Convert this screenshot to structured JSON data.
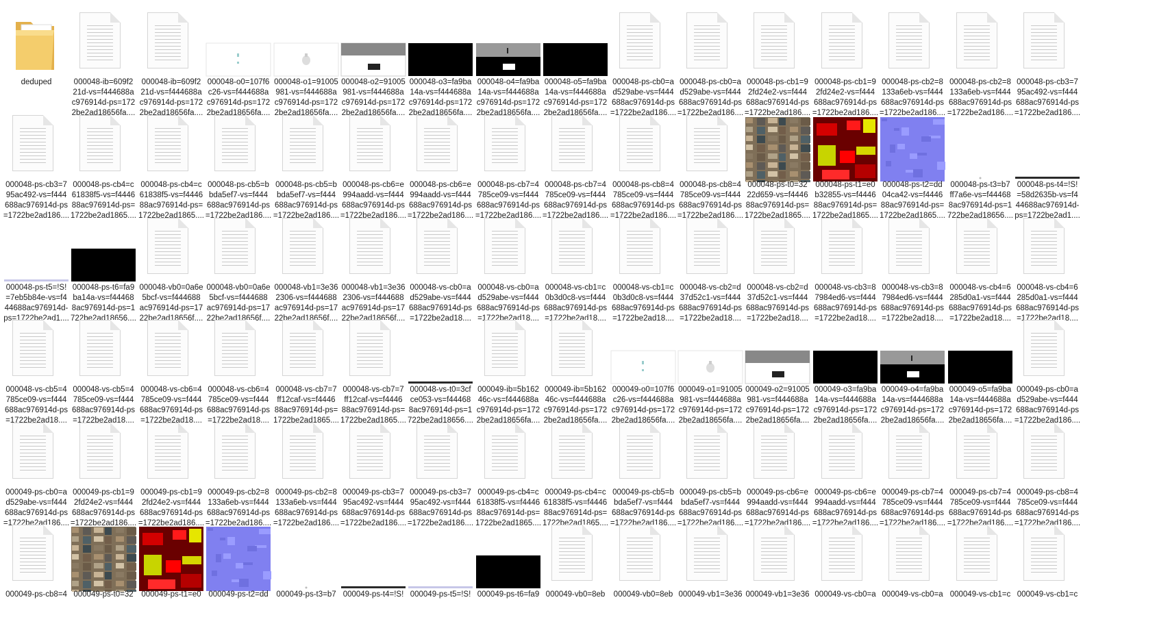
{
  "window": {
    "title": "deduped"
  },
  "items": [
    {
      "t": "folder",
      "name": [
        "deduped"
      ]
    },
    {
      "t": "doc",
      "name": [
        "000048-ib=609f2",
        "21d-vs=f444688a",
        "c976914d-ps=172",
        "2be2ad18656fa...."
      ]
    },
    {
      "t": "doc",
      "name": [
        "000048-ib=609f2",
        "21d-vs=f444688a",
        "c976914d-ps=172",
        "2be2ad18656fa...."
      ]
    },
    {
      "t": "img",
      "v": "o0",
      "name": [
        "000048-o0=107f6",
        "c26-vs=f444688a",
        "c976914d-ps=172",
        "2be2ad18656fa...."
      ]
    },
    {
      "t": "img",
      "v": "o1",
      "name": [
        "000048-o1=91005",
        "981-vs=f444688a",
        "c976914d-ps=172",
        "2be2ad18656fa...."
      ]
    },
    {
      "t": "img",
      "v": "o2",
      "name": [
        "000048-o2=91005",
        "981-vs=f444688a",
        "c976914d-ps=172",
        "2be2ad18656fa...."
      ]
    },
    {
      "t": "img",
      "v": "black",
      "name": [
        "000048-o3=fa9ba",
        "14a-vs=f444688a",
        "c976914d-ps=172",
        "2be2ad18656fa...."
      ]
    },
    {
      "t": "img",
      "v": "o4",
      "name": [
        "000048-o4=fa9ba",
        "14a-vs=f444688a",
        "c976914d-ps=172",
        "2be2ad18656fa...."
      ]
    },
    {
      "t": "img",
      "v": "black",
      "name": [
        "000048-o5=fa9ba",
        "14a-vs=f444688a",
        "c976914d-ps=172",
        "2be2ad18656fa...."
      ]
    },
    {
      "t": "doc",
      "name": [
        "000048-ps-cb0=a",
        "d529abe-vs=f444",
        "688ac976914d-ps",
        "=1722be2ad186...."
      ]
    },
    {
      "t": "doc",
      "name": [
        "000048-ps-cb0=a",
        "d529abe-vs=f444",
        "688ac976914d-ps",
        "=1722be2ad186...."
      ]
    },
    {
      "t": "doc",
      "name": [
        "000048-ps-cb1=9",
        "2fd24e2-vs=f444",
        "688ac976914d-ps",
        "=1722be2ad186...."
      ]
    },
    {
      "t": "doc",
      "name": [
        "000048-ps-cb1=9",
        "2fd24e2-vs=f444",
        "688ac976914d-ps",
        "=1722be2ad186...."
      ]
    },
    {
      "t": "doc",
      "name": [
        "000048-ps-cb2=8",
        "133a6eb-vs=f444",
        "688ac976914d-ps",
        "=1722be2ad186...."
      ]
    },
    {
      "t": "doc",
      "name": [
        "000048-ps-cb2=8",
        "133a6eb-vs=f444",
        "688ac976914d-ps",
        "=1722be2ad186...."
      ]
    },
    {
      "t": "doc",
      "name": [
        "000048-ps-cb3=7",
        "95ac492-vs=f444",
        "688ac976914d-ps",
        "=1722be2ad186...."
      ]
    },
    {
      "t": "doc",
      "name": [
        "000048-ps-cb3=7",
        "95ac492-vs=f444",
        "688ac976914d-ps",
        "=1722be2ad186...."
      ]
    },
    {
      "t": "doc",
      "name": [
        "000048-ps-cb4=c",
        "61838f5-vs=f4446",
        "88ac976914d-ps=",
        "1722be2ad1865...."
      ]
    },
    {
      "t": "doc",
      "name": [
        "000048-ps-cb4=c",
        "61838f5-vs=f4446",
        "88ac976914d-ps=",
        "1722be2ad1865...."
      ]
    },
    {
      "t": "doc",
      "name": [
        "000048-ps-cb5=b",
        "bda5ef7-vs=f444",
        "688ac976914d-ps",
        "=1722be2ad186...."
      ]
    },
    {
      "t": "doc",
      "name": [
        "000048-ps-cb5=b",
        "bda5ef7-vs=f444",
        "688ac976914d-ps",
        "=1722be2ad186...."
      ]
    },
    {
      "t": "doc",
      "name": [
        "000048-ps-cb6=e",
        "994aadd-vs=f444",
        "688ac976914d-ps",
        "=1722be2ad186...."
      ]
    },
    {
      "t": "doc",
      "name": [
        "000048-ps-cb6=e",
        "994aadd-vs=f444",
        "688ac976914d-ps",
        "=1722be2ad186...."
      ]
    },
    {
      "t": "doc",
      "name": [
        "000048-ps-cb7=4",
        "785ce09-vs=f444",
        "688ac976914d-ps",
        "=1722be2ad186...."
      ]
    },
    {
      "t": "doc",
      "name": [
        "000048-ps-cb7=4",
        "785ce09-vs=f444",
        "688ac976914d-ps",
        "=1722be2ad186...."
      ]
    },
    {
      "t": "doc",
      "name": [
        "000048-ps-cb8=4",
        "785ce09-vs=f444",
        "688ac976914d-ps",
        "=1722be2ad186...."
      ]
    },
    {
      "t": "doc",
      "name": [
        "000048-ps-cb8=4",
        "785ce09-vs=f444",
        "688ac976914d-ps",
        "=1722be2ad186...."
      ]
    },
    {
      "t": "tex",
      "v": "collage",
      "name": [
        "000048-ps-t0=32",
        "22d659-vs=f4446",
        "88ac976914d-ps=",
        "1722be2ad1865...."
      ]
    },
    {
      "t": "tex",
      "v": "red",
      "name": [
        "000048-ps-t1=e0",
        "b32855-vs=f4446",
        "88ac976914d-ps=",
        "1722be2ad1865...."
      ]
    },
    {
      "t": "tex",
      "v": "normal",
      "name": [
        "000048-ps-t2=dd",
        "04ca42-vs=f4446",
        "88ac976914d-ps=",
        "1722be2ad1865...."
      ]
    },
    {
      "t": "img",
      "v": "dot",
      "name": [
        "000048-ps-t3=b7",
        "ff7a6e-vs=f44468",
        "8ac976914d-ps=1",
        "722be2ad18656...."
      ]
    },
    {
      "t": "img",
      "v": "line",
      "name": [
        "000048-ps-t4=!S!",
        "=58d2635b-vs=f4",
        "44688ac976914d-",
        "ps=1722be2ad1...."
      ]
    },
    {
      "t": "img",
      "v": "line2",
      "name": [
        "000048-ps-t5=!S!",
        "=7eb5b84e-vs=f4",
        "44688ac976914d-",
        "ps=1722be2ad1...."
      ]
    },
    {
      "t": "img",
      "v": "black",
      "name": [
        "000048-ps-t6=fa9",
        "ba14a-vs=f44468",
        "8ac976914d-ps=1",
        "722be2ad18656...."
      ]
    },
    {
      "t": "doc",
      "name": [
        "000048-vb0=0a6e",
        "5bcf-vs=f444688",
        "ac976914d-ps=17",
        "22be2ad18656f...."
      ]
    },
    {
      "t": "doc",
      "name": [
        "000048-vb0=0a6e",
        "5bcf-vs=f444688",
        "ac976914d-ps=17",
        "22be2ad18656f...."
      ]
    },
    {
      "t": "doc",
      "name": [
        "000048-vb1=3e36",
        "2306-vs=f444688",
        "ac976914d-ps=17",
        "22be2ad18656f...."
      ]
    },
    {
      "t": "doc",
      "name": [
        "000048-vb1=3e36",
        "2306-vs=f444688",
        "ac976914d-ps=17",
        "22be2ad18656f...."
      ]
    },
    {
      "t": "doc",
      "name": [
        "000048-vs-cb0=a",
        "d529abe-vs=f444",
        "688ac976914d-ps",
        "=1722be2ad18...."
      ]
    },
    {
      "t": "doc",
      "name": [
        "000048-vs-cb0=a",
        "d529abe-vs=f444",
        "688ac976914d-ps",
        "=1722be2ad18...."
      ]
    },
    {
      "t": "doc",
      "name": [
        "000048-vs-cb1=c",
        "0b3d0c8-vs=f444",
        "688ac976914d-ps",
        "=1722be2ad18...."
      ]
    },
    {
      "t": "doc",
      "name": [
        "000048-vs-cb1=c",
        "0b3d0c8-vs=f444",
        "688ac976914d-ps",
        "=1722be2ad18...."
      ]
    },
    {
      "t": "doc",
      "name": [
        "000048-vs-cb2=d",
        "37d52c1-vs=f444",
        "688ac976914d-ps",
        "=1722be2ad18...."
      ]
    },
    {
      "t": "doc",
      "name": [
        "000048-vs-cb2=d",
        "37d52c1-vs=f444",
        "688ac976914d-ps",
        "=1722be2ad18...."
      ]
    },
    {
      "t": "doc",
      "name": [
        "000048-vs-cb3=8",
        "7984ed6-vs=f444",
        "688ac976914d-ps",
        "=1722be2ad18...."
      ]
    },
    {
      "t": "doc",
      "name": [
        "000048-vs-cb3=8",
        "7984ed6-vs=f444",
        "688ac976914d-ps",
        "=1722be2ad18...."
      ]
    },
    {
      "t": "doc",
      "name": [
        "000048-vs-cb4=6",
        "285d0a1-vs=f444",
        "688ac976914d-ps",
        "=1722be2ad18...."
      ]
    },
    {
      "t": "doc",
      "name": [
        "000048-vs-cb4=6",
        "285d0a1-vs=f444",
        "688ac976914d-ps",
        "=1722be2ad18...."
      ]
    },
    {
      "t": "doc",
      "name": [
        "000048-vs-cb5=4",
        "785ce09-vs=f444",
        "688ac976914d-ps",
        "=1722be2ad18...."
      ]
    },
    {
      "t": "doc",
      "name": [
        "000048-vs-cb5=4",
        "785ce09-vs=f444",
        "688ac976914d-ps",
        "=1722be2ad18...."
      ]
    },
    {
      "t": "doc",
      "name": [
        "000048-vs-cb6=4",
        "785ce09-vs=f444",
        "688ac976914d-ps",
        "=1722be2ad18...."
      ]
    },
    {
      "t": "doc",
      "name": [
        "000048-vs-cb6=4",
        "785ce09-vs=f444",
        "688ac976914d-ps",
        "=1722be2ad18...."
      ]
    },
    {
      "t": "doc",
      "name": [
        "000048-vs-cb7=7",
        "ff12caf-vs=f4446",
        "88ac976914d-ps=",
        "1722be2ad1865...."
      ]
    },
    {
      "t": "doc",
      "name": [
        "000048-vs-cb7=7",
        "ff12caf-vs=f4446",
        "88ac976914d-ps=",
        "1722be2ad1865...."
      ]
    },
    {
      "t": "img",
      "v": "line",
      "name": [
        "000048-vs-t0=3cf",
        "ce053-vs=f44468",
        "8ac976914d-ps=1",
        "722be2ad18656...."
      ]
    },
    {
      "t": "doc",
      "name": [
        "000049-ib=5b162",
        "46c-vs=f444688a",
        "c976914d-ps=172",
        "2be2ad18656fa...."
      ]
    },
    {
      "t": "doc",
      "name": [
        "000049-ib=5b162",
        "46c-vs=f444688a",
        "c976914d-ps=172",
        "2be2ad18656fa...."
      ]
    },
    {
      "t": "img",
      "v": "o0",
      "name": [
        "000049-o0=107f6",
        "c26-vs=f444688a",
        "c976914d-ps=172",
        "2be2ad18656fa...."
      ]
    },
    {
      "t": "img",
      "v": "o1",
      "name": [
        "000049-o1=91005",
        "981-vs=f444688a",
        "c976914d-ps=172",
        "2be2ad18656fa...."
      ]
    },
    {
      "t": "img",
      "v": "o2",
      "name": [
        "000049-o2=91005",
        "981-vs=f444688a",
        "c976914d-ps=172",
        "2be2ad18656fa...."
      ]
    },
    {
      "t": "img",
      "v": "black",
      "name": [
        "000049-o3=fa9ba",
        "14a-vs=f444688a",
        "c976914d-ps=172",
        "2be2ad18656fa...."
      ]
    },
    {
      "t": "img",
      "v": "o4",
      "name": [
        "000049-o4=fa9ba",
        "14a-vs=f444688a",
        "c976914d-ps=172",
        "2be2ad18656fa...."
      ]
    },
    {
      "t": "img",
      "v": "black",
      "name": [
        "000049-o5=fa9ba",
        "14a-vs=f444688a",
        "c976914d-ps=172",
        "2be2ad18656fa...."
      ]
    },
    {
      "t": "doc",
      "name": [
        "000049-ps-cb0=a",
        "d529abe-vs=f444",
        "688ac976914d-ps",
        "=1722be2ad186...."
      ]
    },
    {
      "t": "doc",
      "name": [
        "000049-ps-cb0=a",
        "d529abe-vs=f444",
        "688ac976914d-ps",
        "=1722be2ad186...."
      ]
    },
    {
      "t": "doc",
      "name": [
        "000049-ps-cb1=9",
        "2fd24e2-vs=f444",
        "688ac976914d-ps",
        "=1722be2ad186...."
      ]
    },
    {
      "t": "doc",
      "name": [
        "000049-ps-cb1=9",
        "2fd24e2-vs=f444",
        "688ac976914d-ps",
        "=1722be2ad186...."
      ]
    },
    {
      "t": "doc",
      "name": [
        "000049-ps-cb2=8",
        "133a6eb-vs=f444",
        "688ac976914d-ps",
        "=1722be2ad186...."
      ]
    },
    {
      "t": "doc",
      "name": [
        "000049-ps-cb2=8",
        "133a6eb-vs=f444",
        "688ac976914d-ps",
        "=1722be2ad186...."
      ]
    },
    {
      "t": "doc",
      "name": [
        "000049-ps-cb3=7",
        "95ac492-vs=f444",
        "688ac976914d-ps",
        "=1722be2ad186...."
      ]
    },
    {
      "t": "doc",
      "name": [
        "000049-ps-cb3=7",
        "95ac492-vs=f444",
        "688ac976914d-ps",
        "=1722be2ad186...."
      ]
    },
    {
      "t": "doc",
      "name": [
        "000049-ps-cb4=c",
        "61838f5-vs=f4446",
        "88ac976914d-ps=",
        "1722be2ad1865...."
      ]
    },
    {
      "t": "doc",
      "name": [
        "000049-ps-cb4=c",
        "61838f5-vs=f4446",
        "88ac976914d-ps=",
        "1722be2ad1865...."
      ]
    },
    {
      "t": "doc",
      "name": [
        "000049-ps-cb5=b",
        "bda5ef7-vs=f444",
        "688ac976914d-ps",
        "=1722be2ad186...."
      ]
    },
    {
      "t": "doc",
      "name": [
        "000049-ps-cb5=b",
        "bda5ef7-vs=f444",
        "688ac976914d-ps",
        "=1722be2ad186...."
      ]
    },
    {
      "t": "doc",
      "name": [
        "000049-ps-cb6=e",
        "994aadd-vs=f444",
        "688ac976914d-ps",
        "=1722be2ad186...."
      ]
    },
    {
      "t": "doc",
      "name": [
        "000049-ps-cb6=e",
        "994aadd-vs=f444",
        "688ac976914d-ps",
        "=1722be2ad186...."
      ]
    },
    {
      "t": "doc",
      "name": [
        "000049-ps-cb7=4",
        "785ce09-vs=f444",
        "688ac976914d-ps",
        "=1722be2ad186...."
      ]
    },
    {
      "t": "doc",
      "name": [
        "000049-ps-cb7=4",
        "785ce09-vs=f444",
        "688ac976914d-ps",
        "=1722be2ad186...."
      ]
    },
    {
      "t": "doc",
      "name": [
        "000049-ps-cb8=4",
        "785ce09-vs=f444",
        "688ac976914d-ps",
        "=1722be2ad186...."
      ]
    },
    {
      "t": "doc",
      "name": [
        "000049-ps-cb8=4"
      ]
    },
    {
      "t": "tex",
      "v": "collage",
      "name": [
        "000049-ps-t0=32"
      ]
    },
    {
      "t": "tex",
      "v": "red",
      "name": [
        "000049-ps-t1=e0"
      ]
    },
    {
      "t": "tex",
      "v": "normal",
      "name": [
        "000049-ps-t2=dd"
      ]
    },
    {
      "t": "img",
      "v": "dot",
      "name": [
        "000049-ps-t3=b7"
      ]
    },
    {
      "t": "img",
      "v": "line",
      "name": [
        "000049-ps-t4=!S!"
      ]
    },
    {
      "t": "img",
      "v": "line2",
      "name": [
        "000049-ps-t5=!S!"
      ]
    },
    {
      "t": "img",
      "v": "black",
      "name": [
        "000049-ps-t6=fa9"
      ]
    },
    {
      "t": "doc",
      "name": [
        "000049-vb0=8eb"
      ]
    },
    {
      "t": "doc",
      "name": [
        "000049-vb0=8eb"
      ]
    },
    {
      "t": "doc",
      "name": [
        "000049-vb1=3e36"
      ]
    },
    {
      "t": "doc",
      "name": [
        "000049-vb1=3e36"
      ]
    },
    {
      "t": "doc",
      "name": [
        "000049-vs-cb0=a"
      ]
    },
    {
      "t": "doc",
      "name": [
        "000049-vs-cb0=a"
      ]
    },
    {
      "t": "doc",
      "name": [
        "000049-vs-cb1=c"
      ]
    },
    {
      "t": "doc",
      "name": [
        "000049-vs-cb1=c"
      ]
    }
  ]
}
